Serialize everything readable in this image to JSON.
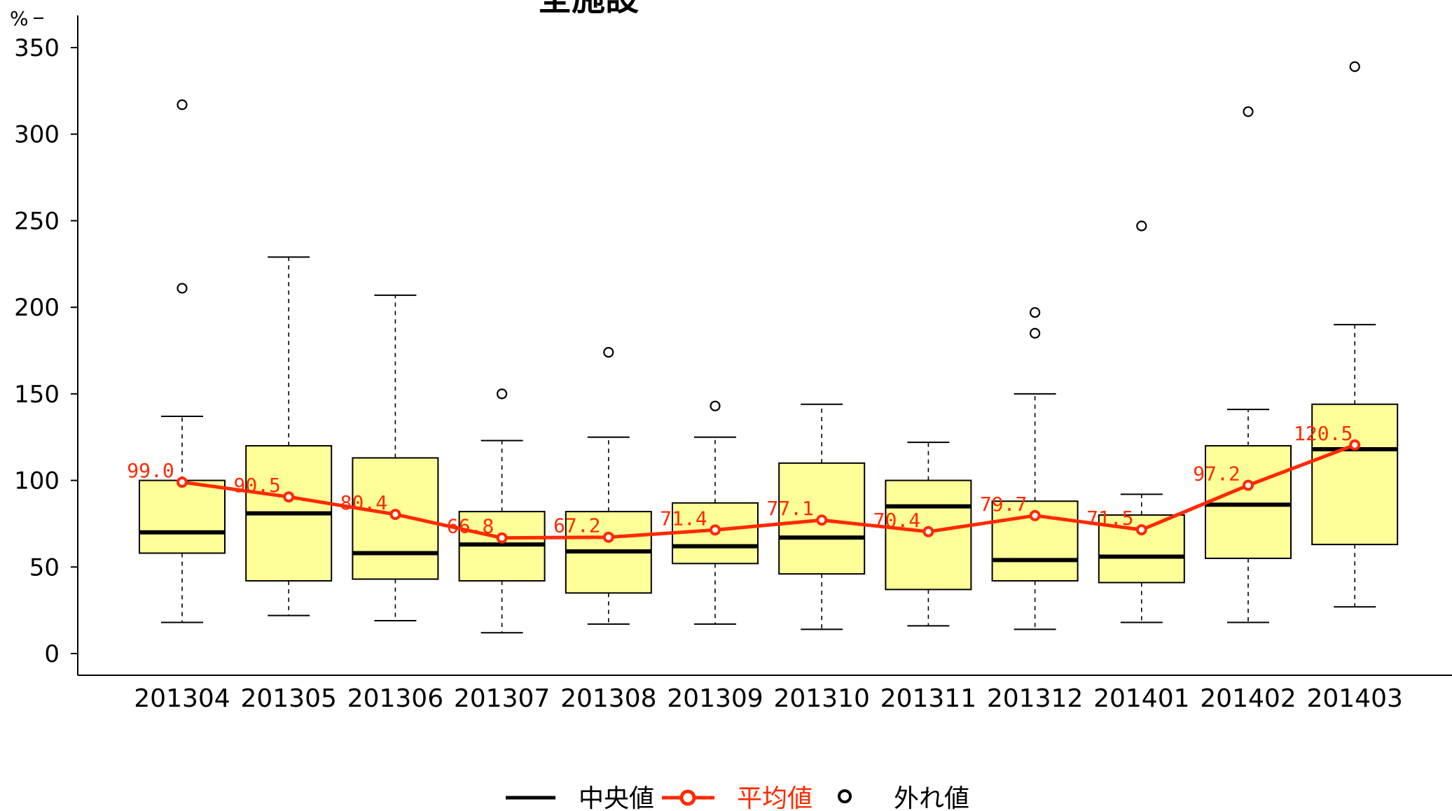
{
  "chart_data": {
    "type": "box",
    "title": "全施設",
    "ylabel": "%",
    "ylim": [
      0,
      360
    ],
    "yticks": [
      0,
      50,
      100,
      150,
      200,
      250,
      300,
      350
    ],
    "categories": [
      "201304",
      "201305",
      "201306",
      "201307",
      "201308",
      "201309",
      "201310",
      "201311",
      "201312",
      "201401",
      "201402",
      "201403"
    ],
    "boxes": [
      {
        "category": "201304",
        "whisker_low": 18,
        "q1": 58,
        "median": 70,
        "q3": 100,
        "whisker_high": 137,
        "outliers": [
          211,
          317
        ]
      },
      {
        "category": "201305",
        "whisker_low": 22,
        "q1": 42,
        "median": 81,
        "q3": 120,
        "whisker_high": 229,
        "outliers": []
      },
      {
        "category": "201306",
        "whisker_low": 19,
        "q1": 43,
        "median": 58,
        "q3": 113,
        "whisker_high": 207,
        "outliers": []
      },
      {
        "category": "201307",
        "whisker_low": 12,
        "q1": 42,
        "median": 63,
        "q3": 82,
        "whisker_high": 123,
        "outliers": [
          150
        ]
      },
      {
        "category": "201308",
        "whisker_low": 17,
        "q1": 35,
        "median": 59,
        "q3": 82,
        "whisker_high": 125,
        "outliers": [
          174
        ]
      },
      {
        "category": "201309",
        "whisker_low": 17,
        "q1": 52,
        "median": 62,
        "q3": 87,
        "whisker_high": 125,
        "outliers": [
          143
        ]
      },
      {
        "category": "201310",
        "whisker_low": 14,
        "q1": 46,
        "median": 67,
        "q3": 110,
        "whisker_high": 144,
        "outliers": []
      },
      {
        "category": "201311",
        "whisker_low": 16,
        "q1": 37,
        "median": 85,
        "q3": 100,
        "whisker_high": 122,
        "outliers": []
      },
      {
        "category": "201312",
        "whisker_low": 14,
        "q1": 42,
        "median": 54,
        "q3": 88,
        "whisker_high": 150,
        "outliers": [
          185,
          197
        ]
      },
      {
        "category": "201401",
        "whisker_low": 18,
        "q1": 41,
        "median": 56,
        "q3": 80,
        "whisker_high": 92,
        "outliers": [
          247
        ]
      },
      {
        "category": "201402",
        "whisker_low": 18,
        "q1": 55,
        "median": 86,
        "q3": 120,
        "whisker_high": 141,
        "outliers": [
          313
        ]
      },
      {
        "category": "201403",
        "whisker_low": 27,
        "q1": 63,
        "median": 118,
        "q3": 144,
        "whisker_high": 190,
        "outliers": [
          339
        ]
      }
    ],
    "mean_series": {
      "name": "平均値",
      "values": [
        99.0,
        90.5,
        80.4,
        66.8,
        67.2,
        71.4,
        77.1,
        70.4,
        79.7,
        71.5,
        97.2,
        120.5
      ],
      "labels": [
        "99.0",
        "90.5",
        "80.4",
        "66.8",
        "67.2",
        "71.4",
        "77.1",
        "70.4",
        "79.7",
        "71.5",
        "97.2",
        "120.5"
      ]
    },
    "legend": {
      "position": "bottom",
      "items": [
        {
          "key": "median",
          "label": "中央値",
          "color": "#000000"
        },
        {
          "key": "mean",
          "label": "平均値",
          "color": "#ff2a00"
        },
        {
          "key": "outlier",
          "label": "外れ値",
          "color": "#000000"
        }
      ]
    },
    "colors": {
      "box_fill": "#ffff99",
      "box_stroke": "#000000",
      "mean": "#ff2a00",
      "median": "#000000"
    },
    "grid": false
  }
}
